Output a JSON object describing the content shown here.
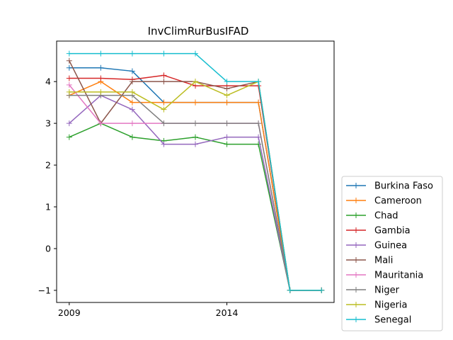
{
  "chart_data": {
    "type": "line",
    "title": "InvClimRurBusIFAD",
    "xlabel": "",
    "ylabel": "",
    "x": [
      2009,
      2010,
      2011,
      2012,
      2013,
      2014,
      2015,
      2016,
      2017
    ],
    "xticks": [
      2009,
      2014
    ],
    "xtick_labels": [
      "2009",
      "2014"
    ],
    "yticks": [
      -1,
      0,
      1,
      2,
      3,
      4
    ],
    "ytick_labels": [
      "−1",
      "0",
      "1",
      "2",
      "3",
      "4"
    ],
    "xlim": [
      2008.6,
      2017.4
    ],
    "ylim": [
      -1.29,
      4.97
    ],
    "grid": false,
    "legend_position": "outside-right",
    "marker": "+",
    "series": [
      {
        "name": "Burkina Faso",
        "color": "#1f77b4",
        "values": [
          4.33,
          4.33,
          4.25,
          3.5,
          3.5,
          3.5,
          3.5,
          -1,
          -1
        ]
      },
      {
        "name": "Cameroon",
        "color": "#ff7f0e",
        "values": [
          3.67,
          4.0,
          3.5,
          3.5,
          3.5,
          3.5,
          3.5,
          -1,
          -1
        ]
      },
      {
        "name": "Chad",
        "color": "#2ca02c",
        "values": [
          2.67,
          3.0,
          2.67,
          2.58,
          2.67,
          2.5,
          2.5,
          -1,
          -1
        ]
      },
      {
        "name": "Gambia",
        "color": "#d62728",
        "values": [
          4.08,
          4.08,
          4.05,
          4.15,
          3.9,
          3.9,
          3.9,
          -1,
          -1
        ]
      },
      {
        "name": "Guinea",
        "color": "#9467bd",
        "values": [
          3.0,
          3.67,
          3.33,
          2.5,
          2.5,
          2.67,
          2.67,
          -1,
          -1
        ]
      },
      {
        "name": "Mali",
        "color": "#8c564b",
        "values": [
          4.5,
          3.0,
          4.0,
          4.0,
          4.0,
          3.83,
          4.0,
          -1,
          -1
        ]
      },
      {
        "name": "Mauritania",
        "color": "#e377c2",
        "values": [
          3.92,
          3.0,
          3.0,
          3.0,
          3.0,
          3.0,
          3.0,
          -1,
          -1
        ]
      },
      {
        "name": "Niger",
        "color": "#7f7f7f",
        "values": [
          3.67,
          3.67,
          3.67,
          3.0,
          3.0,
          3.0,
          3.0,
          -1,
          -1
        ]
      },
      {
        "name": "Nigeria",
        "color": "#bcbd22",
        "values": [
          3.75,
          3.75,
          3.75,
          3.33,
          4.0,
          3.67,
          4.0,
          -1,
          -1
        ]
      },
      {
        "name": "Senegal",
        "color": "#17becf",
        "values": [
          4.67,
          4.67,
          4.67,
          4.67,
          4.67,
          4.0,
          4.0,
          -1,
          -1
        ]
      }
    ]
  }
}
